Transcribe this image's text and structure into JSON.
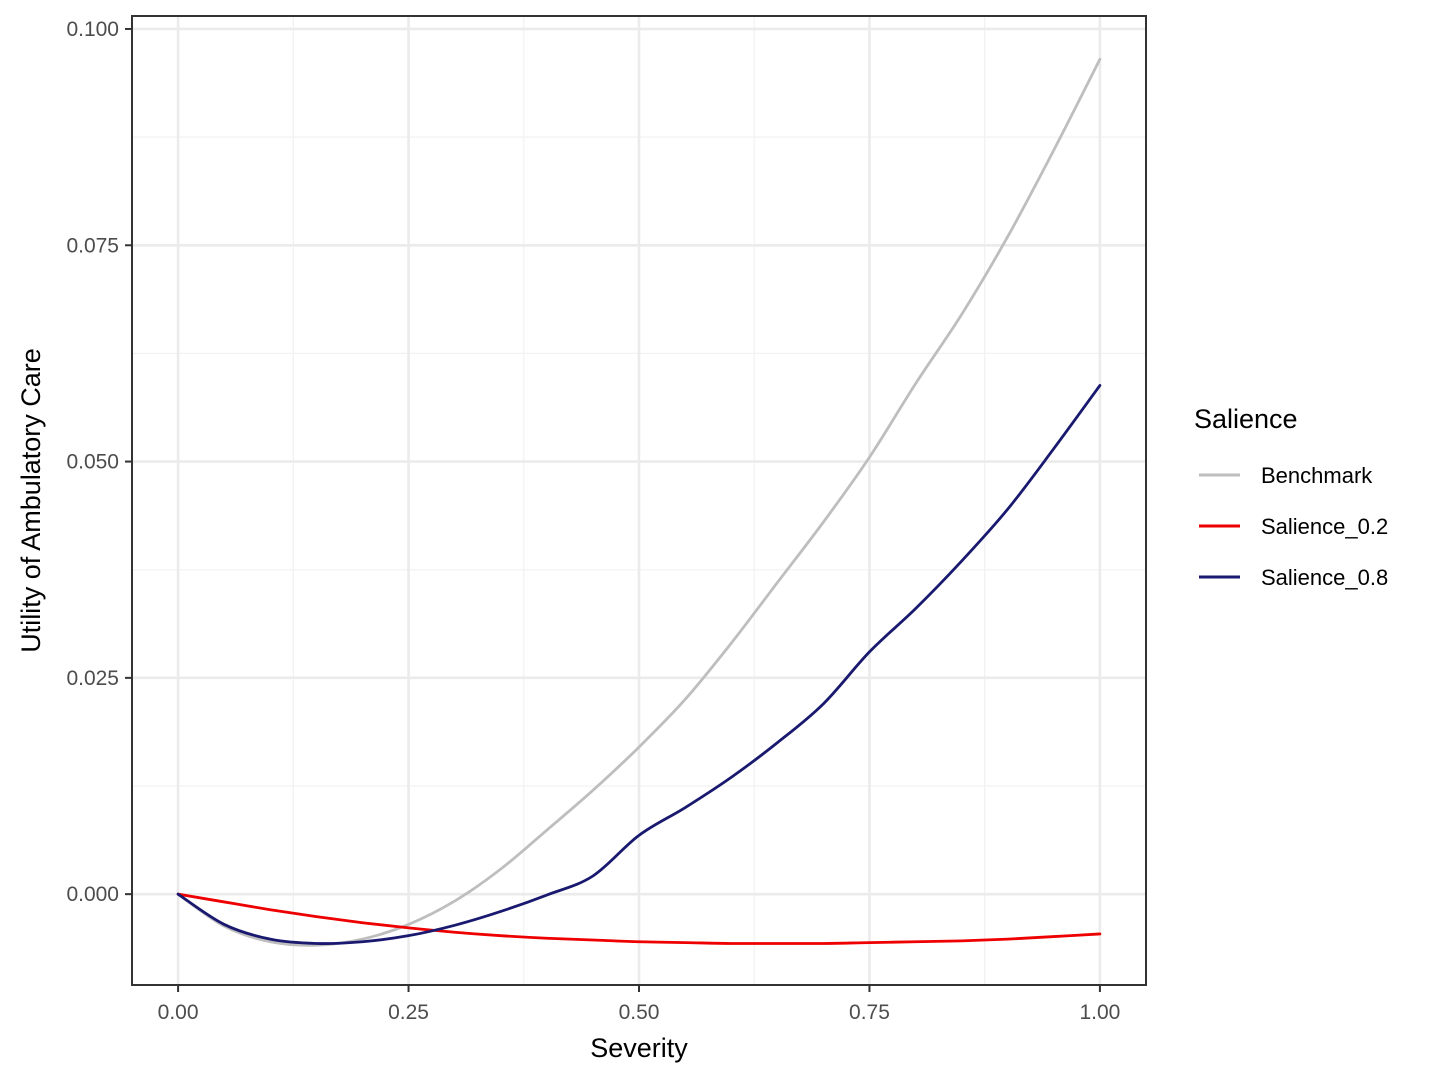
{
  "chart_data": {
    "type": "line",
    "title": "",
    "xlabel": "Severity",
    "ylabel": "Utility of Ambulatory Care",
    "xlim": [
      -0.05,
      1.05
    ],
    "ylim": [
      -0.0105,
      0.1015
    ],
    "x_ticks": [
      0.0,
      0.25,
      0.5,
      0.75,
      1.0
    ],
    "x_tick_labels": [
      "0.00",
      "0.25",
      "0.50",
      "0.75",
      "1.00"
    ],
    "y_ticks": [
      0.0,
      0.025,
      0.05,
      0.075,
      0.1
    ],
    "y_tick_labels": [
      "0.000",
      "0.025",
      "0.050",
      "0.075",
      "0.100"
    ],
    "grid": true,
    "legend": {
      "title": "Salience",
      "position": "right"
    },
    "x": [
      0.0,
      0.05,
      0.1,
      0.15,
      0.2,
      0.25,
      0.3,
      0.35,
      0.4,
      0.45,
      0.5,
      0.55,
      0.6,
      0.65,
      0.7,
      0.75,
      0.8,
      0.85,
      0.9,
      0.95,
      1.0
    ],
    "series": [
      {
        "name": "Benchmark",
        "color": "#bebebe",
        "values": [
          0.0,
          -0.0037,
          -0.0055,
          -0.0059,
          -0.0052,
          -0.0035,
          -0.0008,
          0.0029,
          0.0074,
          0.012,
          0.017,
          0.0225,
          0.029,
          0.036,
          0.043,
          0.0505,
          0.059,
          0.067,
          0.076,
          0.086,
          0.0965
        ]
      },
      {
        "name": "Salience_0.2",
        "color": "#ee0000",
        "values": [
          0.0,
          -0.0009,
          -0.0018,
          -0.0026,
          -0.0033,
          -0.0039,
          -0.0044,
          -0.0048,
          -0.0051,
          -0.0053,
          -0.0055,
          -0.0056,
          -0.0057,
          -0.0057,
          -0.0057,
          -0.0056,
          -0.0055,
          -0.0054,
          -0.0052,
          -0.0049,
          -0.0046
        ]
      },
      {
        "name": "Salience_0.8",
        "color": "#191970",
        "values": [
          0.0,
          -0.0035,
          -0.0052,
          -0.0057,
          -0.0055,
          -0.0048,
          -0.0036,
          -0.002,
          -0.0001,
          0.0021,
          0.0068,
          0.01,
          0.0135,
          0.0175,
          0.022,
          0.028,
          0.033,
          0.0385,
          0.0445,
          0.0515,
          0.0588
        ]
      }
    ]
  }
}
